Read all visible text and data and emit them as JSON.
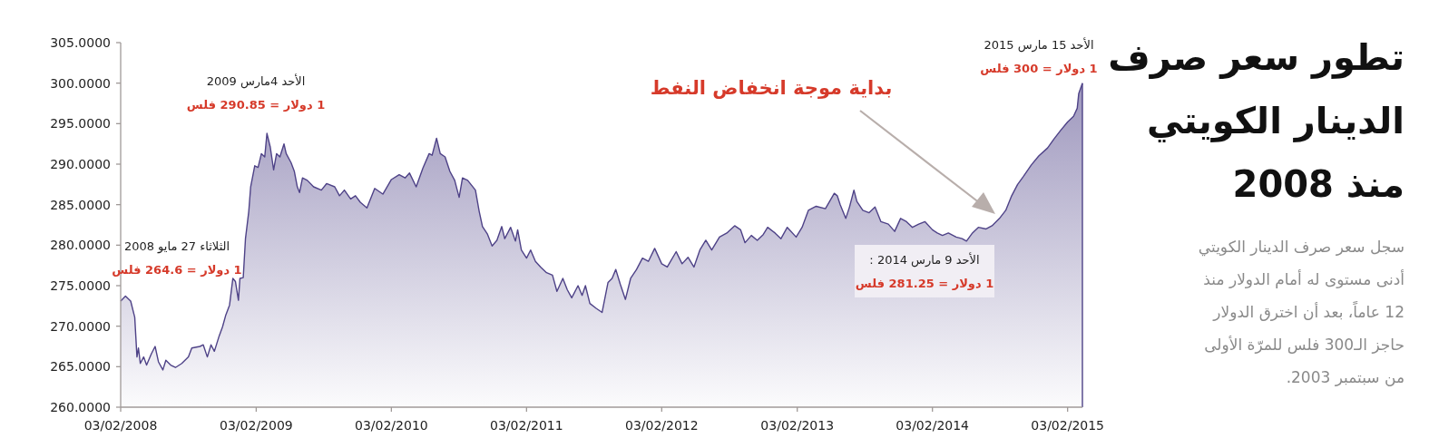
{
  "chart_data": {
    "type": "area",
    "title": "تطور سعر صرف الدينار الكويتي منذ 2008",
    "subtitle": "سجل سعر صرف الدينار الكويتي أدنى مستوى له أمام الدولار منذ 12 عاماً، بعد أن اخترق الدولار حاجز الـ300 فلس للمرّة الأولى من سبتمبر 2003.",
    "annotations": [
      "الثلاثاء 27 مايو 2008",
      "1 دولار = 264.6 فلس",
      "الأحد 4مارس 2009",
      "1 دولار = 290.85 فلس",
      "بداية موجة انخفاض النفط",
      "الأحد 15 مارس 2015",
      "1 دولار = 300 فلس",
      "الأحد 9 مارس 2014 :",
      "1 دولار = 281.25 فلس"
    ],
    "x": [
      "2008-02-03",
      "2008-02-16",
      "2008-03-01",
      "2008-03-12",
      "2008-03-18",
      "2008-03-22",
      "2008-03-27",
      "2008-04-05",
      "2008-04-13",
      "2008-04-26",
      "2008-05-06",
      "2008-05-15",
      "2008-05-27",
      "2008-06-04",
      "2008-06-17",
      "2008-06-30",
      "2008-07-17",
      "2008-08-04",
      "2008-08-13",
      "2008-09-04",
      "2008-09-13",
      "2008-09-24",
      "2008-10-04",
      "2008-10-13",
      "2008-10-26",
      "2008-11-04",
      "2008-11-13",
      "2008-11-23",
      "2008-12-02",
      "2008-12-09",
      "2008-12-17",
      "2008-12-21",
      "2008-12-30",
      "2009-01-05",
      "2009-01-14",
      "2009-01-19",
      "2009-01-30",
      "2009-02-08",
      "2009-02-17",
      "2009-02-26",
      "2009-03-04",
      "2009-03-13",
      "2009-03-22",
      "2009-03-30",
      "2009-04-08",
      "2009-04-19",
      "2009-04-25",
      "2009-05-08",
      "2009-05-17",
      "2009-05-25",
      "2009-05-31",
      "2009-06-08",
      "2009-06-21",
      "2009-07-08",
      "2009-07-29",
      "2009-08-12",
      "2009-09-03",
      "2009-09-16",
      "2009-09-29",
      "2009-10-16",
      "2009-10-29",
      "2009-11-11",
      "2009-11-29",
      "2009-12-20",
      "2010-01-11",
      "2010-02-03",
      "2010-02-24",
      "2010-03-12",
      "2010-03-24",
      "2010-04-11",
      "2010-04-29",
      "2010-05-16",
      "2010-05-24",
      "2010-06-05",
      "2010-06-15",
      "2010-06-28",
      "2010-07-11",
      "2010-07-24",
      "2010-08-05",
      "2010-08-14",
      "2010-08-28",
      "2010-09-18",
      "2010-09-28",
      "2010-10-07",
      "2010-10-20",
      "2010-11-02",
      "2010-11-15",
      "2010-11-28",
      "2010-12-06",
      "2010-12-22",
      "2011-01-04",
      "2011-01-10",
      "2011-01-20",
      "2011-02-03",
      "2011-02-14",
      "2011-02-27",
      "2011-03-13",
      "2011-03-29",
      "2011-04-14",
      "2011-04-26",
      "2011-05-12",
      "2011-05-24",
      "2011-06-05",
      "2011-06-22",
      "2011-07-03",
      "2011-07-12",
      "2011-07-24",
      "2011-08-10",
      "2011-08-26",
      "2011-09-11",
      "2011-09-22",
      "2011-10-02",
      "2011-10-14",
      "2011-10-28",
      "2011-11-11",
      "2011-11-27",
      "2011-12-13",
      "2011-12-29",
      "2012-01-15",
      "2012-02-03",
      "2012-02-18",
      "2012-03-13",
      "2012-03-29",
      "2012-04-14",
      "2012-04-30",
      "2012-05-16",
      "2012-06-01",
      "2012-06-17",
      "2012-07-08",
      "2012-07-28",
      "2012-08-18",
      "2012-09-03",
      "2012-09-15",
      "2012-10-02",
      "2012-10-18",
      "2012-11-03",
      "2012-11-15",
      "2012-12-05",
      "2012-12-21",
      "2013-01-07",
      "2013-01-31",
      "2013-02-16",
      "2013-03-05",
      "2013-03-26",
      "2013-04-20",
      "2013-05-14",
      "2013-05-22",
      "2013-05-30",
      "2013-06-14",
      "2013-06-24",
      "2013-07-06",
      "2013-07-14",
      "2013-07-30",
      "2013-08-16",
      "2013-09-01",
      "2013-09-17",
      "2013-10-07",
      "2013-10-24",
      "2013-11-09",
      "2013-11-25",
      "2013-12-11",
      "2013-12-28",
      "2014-01-14",
      "2014-02-03",
      "2014-02-16",
      "2014-03-02",
      "2014-03-18",
      "2014-04-08",
      "2014-04-24",
      "2014-05-06",
      "2014-05-22",
      "2014-06-07",
      "2014-06-28",
      "2014-07-14",
      "2014-08-03",
      "2014-08-20",
      "2014-09-05",
      "2014-09-21",
      "2014-10-07",
      "2014-10-28",
      "2014-11-17",
      "2014-12-11",
      "2014-12-28",
      "2015-01-14",
      "2015-02-03",
      "2015-02-19",
      "2015-03-01",
      "2015-03-05",
      "2015-03-15"
    ],
    "series": [
      {
        "color": "#4e4287",
        "values": [
          273.1,
          273.7,
          273.1,
          271.1,
          266.2,
          267.3,
          265.4,
          266.2,
          265.2,
          266.6,
          267.5,
          265.6,
          264.6,
          265.8,
          265.2,
          264.9,
          265.4,
          266.2,
          267.3,
          267.5,
          267.7,
          266.2,
          267.7,
          266.9,
          268.8,
          269.9,
          271.4,
          272.6,
          275.9,
          275.5,
          273.2,
          275.9,
          276.0,
          280.8,
          284.2,
          287.2,
          289.8,
          289.6,
          291.3,
          290.9,
          293.8,
          292.1,
          289.3,
          291.3,
          290.9,
          292.5,
          291.3,
          290.2,
          289.1,
          287.2,
          286.5,
          288.3,
          288.0,
          287.2,
          286.8,
          287.6,
          287.2,
          286.1,
          286.8,
          285.7,
          286.1,
          285.3,
          284.6,
          287.0,
          286.3,
          288.1,
          288.7,
          288.3,
          288.9,
          287.2,
          289.5,
          291.3,
          291.1,
          293.2,
          291.3,
          290.9,
          289.1,
          288.0,
          285.9,
          288.3,
          288.0,
          286.8,
          284.2,
          282.3,
          281.4,
          279.9,
          280.6,
          282.3,
          280.8,
          282.2,
          280.5,
          281.9,
          279.4,
          278.4,
          279.4,
          278.0,
          277.3,
          276.6,
          276.3,
          274.3,
          275.9,
          274.5,
          273.5,
          275.0,
          273.8,
          275.0,
          272.8,
          272.2,
          271.7,
          275.4,
          275.9,
          277.0,
          275.2,
          273.3,
          275.9,
          277.0,
          278.4,
          278.0,
          279.6,
          277.7,
          277.3,
          279.2,
          277.7,
          278.5,
          277.3,
          279.4,
          280.6,
          279.4,
          281.0,
          281.5,
          282.4,
          281.9,
          280.3,
          281.2,
          280.6,
          281.3,
          282.2,
          281.5,
          280.8,
          282.2,
          281.0,
          282.2,
          284.3,
          284.8,
          284.5,
          286.4,
          286.1,
          285.0,
          283.3,
          284.7,
          286.8,
          285.4,
          284.3,
          284.0,
          284.7,
          282.9,
          282.6,
          281.7,
          283.3,
          282.9,
          282.2,
          282.6,
          282.9,
          281.9,
          281.5,
          281.2,
          281.5,
          281.0,
          280.8,
          280.5,
          281.5,
          282.2,
          282.0,
          282.4,
          283.3,
          284.3,
          286.1,
          287.5,
          288.5,
          289.9,
          291.0,
          292.0,
          293.1,
          294.1,
          295.2,
          295.9,
          296.9,
          298.7,
          300
        ]
      }
    ],
    "xlim": [
      "2008-02-03",
      "2015-03-15"
    ],
    "xticks": [
      {
        "value": "2008-02-03",
        "label": "03/02/2008"
      },
      {
        "value": "2009-02-03",
        "label": "03/02/2009"
      },
      {
        "value": "2010-02-03",
        "label": "03/02/2010"
      },
      {
        "value": "2011-02-03",
        "label": "03/02/2011"
      },
      {
        "value": "2012-02-03",
        "label": "03/02/2012"
      },
      {
        "value": "2013-02-03",
        "label": "03/02/2013"
      },
      {
        "value": "2014-02-03",
        "label": "03/02/2014"
      },
      {
        "value": "2015-02-03",
        "label": "03/02/2015"
      }
    ],
    "ylim": [
      260,
      305
    ],
    "yticks": [
      {
        "value": 260,
        "label": "260.0000"
      },
      {
        "value": 265,
        "label": "265.0000"
      },
      {
        "value": 270,
        "label": "270.0000"
      },
      {
        "value": 275,
        "label": "275.0000"
      },
      {
        "value": 280,
        "label": "280.0000"
      },
      {
        "value": 285,
        "label": "285.0000"
      },
      {
        "value": 290,
        "label": "290.0000"
      },
      {
        "value": 295,
        "label": "295.0000"
      },
      {
        "value": 300,
        "label": "300.0000"
      },
      {
        "value": 305,
        "label": "305.0000"
      }
    ]
  }
}
